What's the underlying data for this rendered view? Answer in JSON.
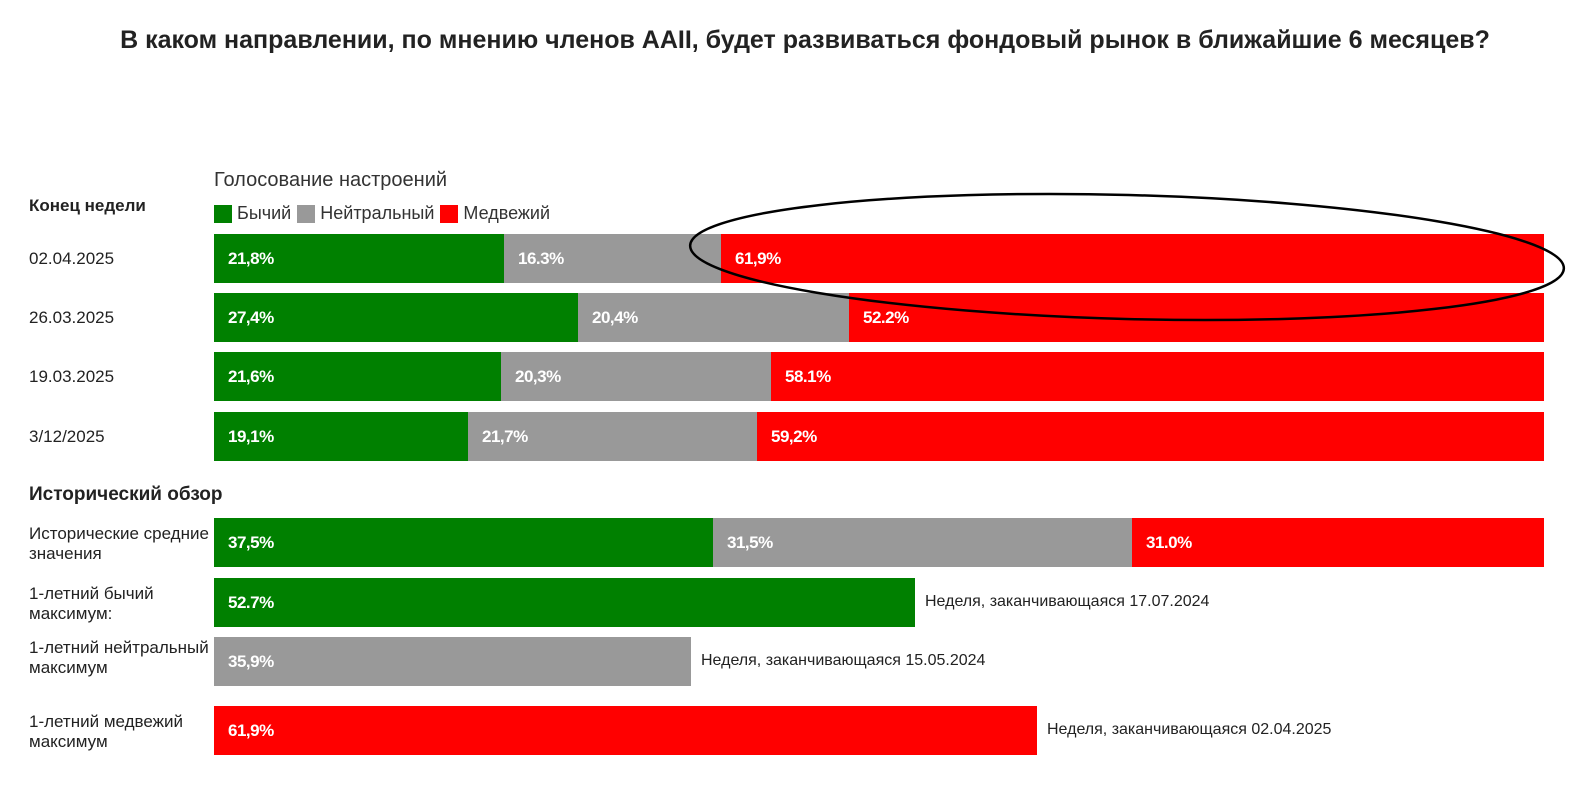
{
  "title": "В каком направлении, по мнению членов AAII, будет развиваться фондовый рынок в ближайшие 6 месяцев?",
  "colors": {
    "bullish": "#008000",
    "neutral": "#999999",
    "bearish": "#ff0000"
  },
  "chart_data": {
    "type": "bar",
    "orientation": "horizontal-stacked",
    "subtitle": "Голосование настроений",
    "row_header": "Конец недели",
    "legend": [
      "Бычий",
      "Нейтральный",
      "Медвежий"
    ],
    "xlim": [
      0,
      100
    ],
    "weekly": [
      {
        "label": "02.04.2025",
        "values": [
          21.8,
          16.3,
          61.9
        ],
        "texts": [
          "21,8%",
          "16.3%",
          "61,9%"
        ],
        "highlighted": true
      },
      {
        "label": "26.03.2025",
        "values": [
          27.4,
          20.4,
          52.2
        ],
        "texts": [
          "27,4%",
          "20,4%",
          "52.2%"
        ]
      },
      {
        "label": "19.03.2025",
        "values": [
          21.6,
          20.3,
          58.1
        ],
        "texts": [
          "21,6%",
          "20,3%",
          "58.1%"
        ]
      },
      {
        "label": "3/12/2025",
        "values": [
          19.1,
          21.7,
          59.2
        ],
        "texts": [
          "19,1%",
          "21,7%",
          "59,2%"
        ]
      }
    ],
    "historical_header": "Исторический обзор",
    "historical": [
      {
        "label": "Исторические средние значения",
        "values": [
          37.5,
          31.5,
          31.0
        ],
        "texts": [
          "37,5%",
          "31,5%",
          "31.0%"
        ],
        "kinds": [
          0,
          1,
          2
        ]
      },
      {
        "label": "1-летний бычий максимум:",
        "values": [
          52.7
        ],
        "texts": [
          "52.7%"
        ],
        "kinds": [
          0
        ],
        "note": "Неделя, заканчивающаяся 17.07.2024"
      },
      {
        "label": "1-летний нейтральный максимум",
        "values": [
          35.9
        ],
        "texts": [
          "35,9%"
        ],
        "kinds": [
          1
        ],
        "note": "Неделя, заканчивающаяся 15.05.2024"
      },
      {
        "label": "1-летний медвежий максимум",
        "values": [
          61.9
        ],
        "texts": [
          "61,9%"
        ],
        "kinds": [
          2
        ],
        "note": "Неделя, заканчивающаяся 02.04.2025"
      }
    ]
  }
}
